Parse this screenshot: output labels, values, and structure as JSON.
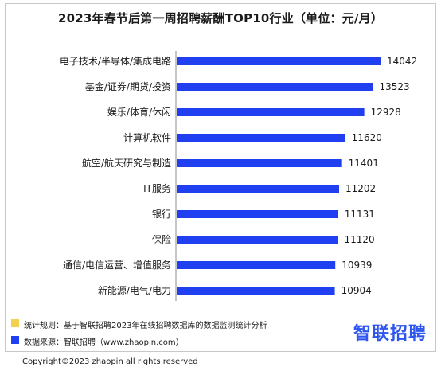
{
  "chart_data": {
    "type": "bar",
    "orientation": "horizontal",
    "title": "2023年春节后第一周招聘薪酬TOP10行业（单位：元/月）",
    "categories": [
      "电子技术/半导体/集成电路",
      "基金/证券/期货/投资",
      "娱乐/体育/休闲",
      "计算机软件",
      "航空/航天研究与制造",
      "IT服务",
      "银行",
      "保险",
      "通信/电信运营、增值服务",
      "新能源/电气/电力"
    ],
    "values": [
      14042,
      13523,
      12928,
      11620,
      11401,
      11202,
      11131,
      11120,
      10939,
      10904
    ],
    "value_labels": [
      "14042",
      "13523",
      "12928",
      "11620",
      "11401",
      "11202",
      "11131",
      "11120",
      "10939",
      "10904"
    ],
    "xlim": [
      0,
      14042
    ],
    "bar_color": "#1f3ff0",
    "grid": false,
    "xaxis_visible": false
  },
  "footer": {
    "rule": "统计规则：基于智联招聘2023年在线招聘数据库的数据监测统计分析",
    "source": "数据来源：智联招聘（www.zhaopin.com）",
    "rule_color": "#f5d04e",
    "source_color": "#1f3ff0"
  },
  "brand": "智联招聘",
  "copyright": "Copyright©2023 zhaopin all rights reserved"
}
